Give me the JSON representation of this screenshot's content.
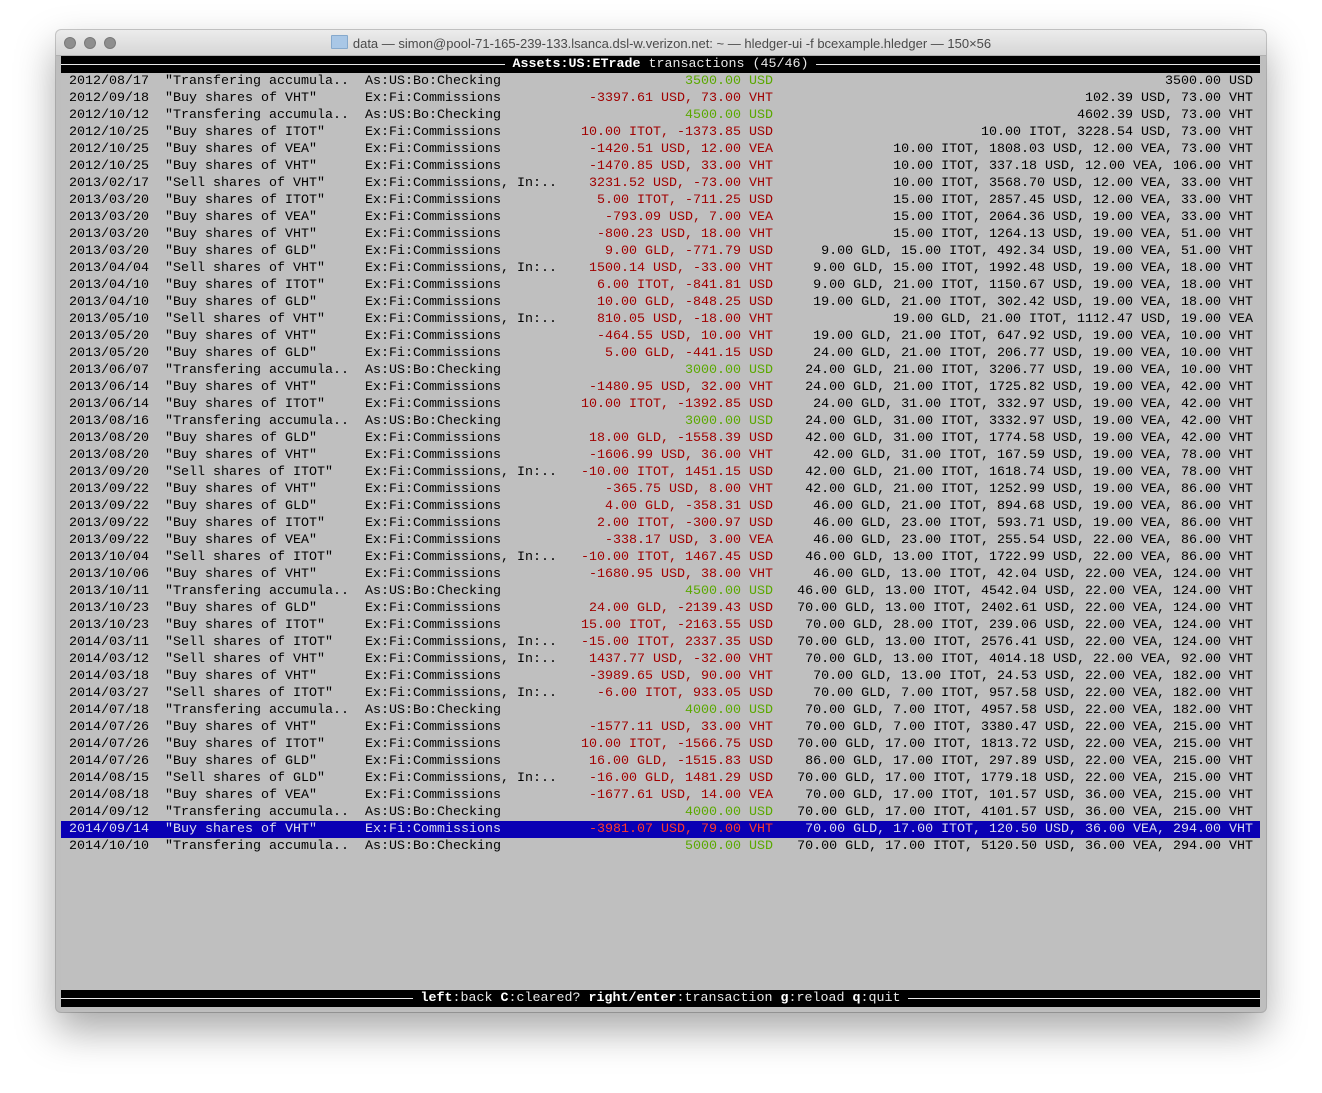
{
  "window": {
    "title": "data — simon@pool-71-165-239-133.lsanca.dsl-w.verizon.net: ~ — hledger-ui -f bcexample.hledger — 150×56",
    "folder_icon": "folder-icon"
  },
  "header": {
    "account": "Assets:US:ETrade",
    "label": "transactions (45/46)"
  },
  "colors": {
    "positive": "#5aa800",
    "negative": "#a00000",
    "selection": "#0a00b4"
  },
  "selected_index": 44,
  "rows": [
    {
      "date": "2012/08/17",
      "desc": "\"Transfering accumula..",
      "account": "As:US:Bo:Checking",
      "amount": "3500.00 USD",
      "balance": "3500.00 USD",
      "kind": "in"
    },
    {
      "date": "2012/09/18",
      "desc": "\"Buy shares of VHT\"",
      "account": "Ex:Fi:Commissions",
      "amount": "-3397.61 USD, 73.00 VHT",
      "balance": "102.39 USD, 73.00 VHT",
      "kind": "out"
    },
    {
      "date": "2012/10/12",
      "desc": "\"Transfering accumula..",
      "account": "As:US:Bo:Checking",
      "amount": "4500.00 USD",
      "balance": "4602.39 USD, 73.00 VHT",
      "kind": "in"
    },
    {
      "date": "2012/10/25",
      "desc": "\"Buy shares of ITOT\"",
      "account": "Ex:Fi:Commissions",
      "amount": "10.00 ITOT, -1373.85 USD",
      "balance": "10.00 ITOT, 3228.54 USD, 73.00 VHT",
      "kind": "out"
    },
    {
      "date": "2012/10/25",
      "desc": "\"Buy shares of VEA\"",
      "account": "Ex:Fi:Commissions",
      "amount": "-1420.51 USD, 12.00 VEA",
      "balance": "10.00 ITOT, 1808.03 USD, 12.00 VEA, 73.00 VHT",
      "kind": "out"
    },
    {
      "date": "2012/10/25",
      "desc": "\"Buy shares of VHT\"",
      "account": "Ex:Fi:Commissions",
      "amount": "-1470.85 USD, 33.00 VHT",
      "balance": "10.00 ITOT, 337.18 USD, 12.00 VEA, 106.00 VHT",
      "kind": "out"
    },
    {
      "date": "2013/02/17",
      "desc": "\"Sell shares of VHT\"",
      "account": "Ex:Fi:Commissions, In:..",
      "amount": "3231.52 USD, -73.00 VHT",
      "balance": "10.00 ITOT, 3568.70 USD, 12.00 VEA, 33.00 VHT",
      "kind": "out"
    },
    {
      "date": "2013/03/20",
      "desc": "\"Buy shares of ITOT\"",
      "account": "Ex:Fi:Commissions",
      "amount": "5.00 ITOT, -711.25 USD",
      "balance": "15.00 ITOT, 2857.45 USD, 12.00 VEA, 33.00 VHT",
      "kind": "out"
    },
    {
      "date": "2013/03/20",
      "desc": "\"Buy shares of VEA\"",
      "account": "Ex:Fi:Commissions",
      "amount": "-793.09 USD, 7.00 VEA",
      "balance": "15.00 ITOT, 2064.36 USD, 19.00 VEA, 33.00 VHT",
      "kind": "out"
    },
    {
      "date": "2013/03/20",
      "desc": "\"Buy shares of VHT\"",
      "account": "Ex:Fi:Commissions",
      "amount": "-800.23 USD, 18.00 VHT",
      "balance": "15.00 ITOT, 1264.13 USD, 19.00 VEA, 51.00 VHT",
      "kind": "out"
    },
    {
      "date": "2013/03/20",
      "desc": "\"Buy shares of GLD\"",
      "account": "Ex:Fi:Commissions",
      "amount": "9.00 GLD, -771.79 USD",
      "balance": "9.00 GLD, 15.00 ITOT, 492.34 USD, 19.00 VEA, 51.00 VHT",
      "kind": "out"
    },
    {
      "date": "2013/04/04",
      "desc": "\"Sell shares of VHT\"",
      "account": "Ex:Fi:Commissions, In:..",
      "amount": "1500.14 USD, -33.00 VHT",
      "balance": "9.00 GLD, 15.00 ITOT, 1992.48 USD, 19.00 VEA, 18.00 VHT",
      "kind": "out"
    },
    {
      "date": "2013/04/10",
      "desc": "\"Buy shares of ITOT\"",
      "account": "Ex:Fi:Commissions",
      "amount": "6.00 ITOT, -841.81 USD",
      "balance": "9.00 GLD, 21.00 ITOT, 1150.67 USD, 19.00 VEA, 18.00 VHT",
      "kind": "out"
    },
    {
      "date": "2013/04/10",
      "desc": "\"Buy shares of GLD\"",
      "account": "Ex:Fi:Commissions",
      "amount": "10.00 GLD, -848.25 USD",
      "balance": "19.00 GLD, 21.00 ITOT, 302.42 USD, 19.00 VEA, 18.00 VHT",
      "kind": "out"
    },
    {
      "date": "2013/05/10",
      "desc": "\"Sell shares of VHT\"",
      "account": "Ex:Fi:Commissions, In:..",
      "amount": "810.05 USD, -18.00 VHT",
      "balance": "19.00 GLD, 21.00 ITOT, 1112.47 USD, 19.00 VEA",
      "kind": "out"
    },
    {
      "date": "2013/05/20",
      "desc": "\"Buy shares of VHT\"",
      "account": "Ex:Fi:Commissions",
      "amount": "-464.55 USD, 10.00 VHT",
      "balance": "19.00 GLD, 21.00 ITOT, 647.92 USD, 19.00 VEA, 10.00 VHT",
      "kind": "out"
    },
    {
      "date": "2013/05/20",
      "desc": "\"Buy shares of GLD\"",
      "account": "Ex:Fi:Commissions",
      "amount": "5.00 GLD, -441.15 USD",
      "balance": "24.00 GLD, 21.00 ITOT, 206.77 USD, 19.00 VEA, 10.00 VHT",
      "kind": "out"
    },
    {
      "date": "2013/06/07",
      "desc": "\"Transfering accumula..",
      "account": "As:US:Bo:Checking",
      "amount": "3000.00 USD",
      "balance": "24.00 GLD, 21.00 ITOT, 3206.77 USD, 19.00 VEA, 10.00 VHT",
      "kind": "in"
    },
    {
      "date": "2013/06/14",
      "desc": "\"Buy shares of VHT\"",
      "account": "Ex:Fi:Commissions",
      "amount": "-1480.95 USD, 32.00 VHT",
      "balance": "24.00 GLD, 21.00 ITOT, 1725.82 USD, 19.00 VEA, 42.00 VHT",
      "kind": "out"
    },
    {
      "date": "2013/06/14",
      "desc": "\"Buy shares of ITOT\"",
      "account": "Ex:Fi:Commissions",
      "amount": "10.00 ITOT, -1392.85 USD",
      "balance": "24.00 GLD, 31.00 ITOT, 332.97 USD, 19.00 VEA, 42.00 VHT",
      "kind": "out"
    },
    {
      "date": "2013/08/16",
      "desc": "\"Transfering accumula..",
      "account": "As:US:Bo:Checking",
      "amount": "3000.00 USD",
      "balance": "24.00 GLD, 31.00 ITOT, 3332.97 USD, 19.00 VEA, 42.00 VHT",
      "kind": "in"
    },
    {
      "date": "2013/08/20",
      "desc": "\"Buy shares of GLD\"",
      "account": "Ex:Fi:Commissions",
      "amount": "18.00 GLD, -1558.39 USD",
      "balance": "42.00 GLD, 31.00 ITOT, 1774.58 USD, 19.00 VEA, 42.00 VHT",
      "kind": "out"
    },
    {
      "date": "2013/08/20",
      "desc": "\"Buy shares of VHT\"",
      "account": "Ex:Fi:Commissions",
      "amount": "-1606.99 USD, 36.00 VHT",
      "balance": "42.00 GLD, 31.00 ITOT, 167.59 USD, 19.00 VEA, 78.00 VHT",
      "kind": "out"
    },
    {
      "date": "2013/09/20",
      "desc": "\"Sell shares of ITOT\"",
      "account": "Ex:Fi:Commissions, In:..",
      "amount": "-10.00 ITOT, 1451.15 USD",
      "balance": "42.00 GLD, 21.00 ITOT, 1618.74 USD, 19.00 VEA, 78.00 VHT",
      "kind": "out"
    },
    {
      "date": "2013/09/22",
      "desc": "\"Buy shares of VHT\"",
      "account": "Ex:Fi:Commissions",
      "amount": "-365.75 USD, 8.00 VHT",
      "balance": "42.00 GLD, 21.00 ITOT, 1252.99 USD, 19.00 VEA, 86.00 VHT",
      "kind": "out"
    },
    {
      "date": "2013/09/22",
      "desc": "\"Buy shares of GLD\"",
      "account": "Ex:Fi:Commissions",
      "amount": "4.00 GLD, -358.31 USD",
      "balance": "46.00 GLD, 21.00 ITOT, 894.68 USD, 19.00 VEA, 86.00 VHT",
      "kind": "out"
    },
    {
      "date": "2013/09/22",
      "desc": "\"Buy shares of ITOT\"",
      "account": "Ex:Fi:Commissions",
      "amount": "2.00 ITOT, -300.97 USD",
      "balance": "46.00 GLD, 23.00 ITOT, 593.71 USD, 19.00 VEA, 86.00 VHT",
      "kind": "out"
    },
    {
      "date": "2013/09/22",
      "desc": "\"Buy shares of VEA\"",
      "account": "Ex:Fi:Commissions",
      "amount": "-338.17 USD, 3.00 VEA",
      "balance": "46.00 GLD, 23.00 ITOT, 255.54 USD, 22.00 VEA, 86.00 VHT",
      "kind": "out"
    },
    {
      "date": "2013/10/04",
      "desc": "\"Sell shares of ITOT\"",
      "account": "Ex:Fi:Commissions, In:..",
      "amount": "-10.00 ITOT, 1467.45 USD",
      "balance": "46.00 GLD, 13.00 ITOT, 1722.99 USD, 22.00 VEA, 86.00 VHT",
      "kind": "out"
    },
    {
      "date": "2013/10/06",
      "desc": "\"Buy shares of VHT\"",
      "account": "Ex:Fi:Commissions",
      "amount": "-1680.95 USD, 38.00 VHT",
      "balance": "46.00 GLD, 13.00 ITOT, 42.04 USD, 22.00 VEA, 124.00 VHT",
      "kind": "out"
    },
    {
      "date": "2013/10/11",
      "desc": "\"Transfering accumula..",
      "account": "As:US:Bo:Checking",
      "amount": "4500.00 USD",
      "balance": "46.00 GLD, 13.00 ITOT, 4542.04 USD, 22.00 VEA, 124.00 VHT",
      "kind": "in"
    },
    {
      "date": "2013/10/23",
      "desc": "\"Buy shares of GLD\"",
      "account": "Ex:Fi:Commissions",
      "amount": "24.00 GLD, -2139.43 USD",
      "balance": "70.00 GLD, 13.00 ITOT, 2402.61 USD, 22.00 VEA, 124.00 VHT",
      "kind": "out"
    },
    {
      "date": "2013/10/23",
      "desc": "\"Buy shares of ITOT\"",
      "account": "Ex:Fi:Commissions",
      "amount": "15.00 ITOT, -2163.55 USD",
      "balance": "70.00 GLD, 28.00 ITOT, 239.06 USD, 22.00 VEA, 124.00 VHT",
      "kind": "out"
    },
    {
      "date": "2014/03/11",
      "desc": "\"Sell shares of ITOT\"",
      "account": "Ex:Fi:Commissions, In:..",
      "amount": "-15.00 ITOT, 2337.35 USD",
      "balance": "70.00 GLD, 13.00 ITOT, 2576.41 USD, 22.00 VEA, 124.00 VHT",
      "kind": "out"
    },
    {
      "date": "2014/03/12",
      "desc": "\"Sell shares of VHT\"",
      "account": "Ex:Fi:Commissions, In:..",
      "amount": "1437.77 USD, -32.00 VHT",
      "balance": "70.00 GLD, 13.00 ITOT, 4014.18 USD, 22.00 VEA, 92.00 VHT",
      "kind": "out"
    },
    {
      "date": "2014/03/18",
      "desc": "\"Buy shares of VHT\"",
      "account": "Ex:Fi:Commissions",
      "amount": "-3989.65 USD, 90.00 VHT",
      "balance": "70.00 GLD, 13.00 ITOT, 24.53 USD, 22.00 VEA, 182.00 VHT",
      "kind": "out"
    },
    {
      "date": "2014/03/27",
      "desc": "\"Sell shares of ITOT\"",
      "account": "Ex:Fi:Commissions, In:..",
      "amount": "-6.00 ITOT, 933.05 USD",
      "balance": "70.00 GLD, 7.00 ITOT, 957.58 USD, 22.00 VEA, 182.00 VHT",
      "kind": "out"
    },
    {
      "date": "2014/07/18",
      "desc": "\"Transfering accumula..",
      "account": "As:US:Bo:Checking",
      "amount": "4000.00 USD",
      "balance": "70.00 GLD, 7.00 ITOT, 4957.58 USD, 22.00 VEA, 182.00 VHT",
      "kind": "in"
    },
    {
      "date": "2014/07/26",
      "desc": "\"Buy shares of VHT\"",
      "account": "Ex:Fi:Commissions",
      "amount": "-1577.11 USD, 33.00 VHT",
      "balance": "70.00 GLD, 7.00 ITOT, 3380.47 USD, 22.00 VEA, 215.00 VHT",
      "kind": "out"
    },
    {
      "date": "2014/07/26",
      "desc": "\"Buy shares of ITOT\"",
      "account": "Ex:Fi:Commissions",
      "amount": "10.00 ITOT, -1566.75 USD",
      "balance": "70.00 GLD, 17.00 ITOT, 1813.72 USD, 22.00 VEA, 215.00 VHT",
      "kind": "out"
    },
    {
      "date": "2014/07/26",
      "desc": "\"Buy shares of GLD\"",
      "account": "Ex:Fi:Commissions",
      "amount": "16.00 GLD, -1515.83 USD",
      "balance": "86.00 GLD, 17.00 ITOT, 297.89 USD, 22.00 VEA, 215.00 VHT",
      "kind": "out"
    },
    {
      "date": "2014/08/15",
      "desc": "\"Sell shares of GLD\"",
      "account": "Ex:Fi:Commissions, In:..",
      "amount": "-16.00 GLD, 1481.29 USD",
      "balance": "70.00 GLD, 17.00 ITOT, 1779.18 USD, 22.00 VEA, 215.00 VHT",
      "kind": "out"
    },
    {
      "date": "2014/08/18",
      "desc": "\"Buy shares of VEA\"",
      "account": "Ex:Fi:Commissions",
      "amount": "-1677.61 USD, 14.00 VEA",
      "balance": "70.00 GLD, 17.00 ITOT, 101.57 USD, 36.00 VEA, 215.00 VHT",
      "kind": "out"
    },
    {
      "date": "2014/09/12",
      "desc": "\"Transfering accumula..",
      "account": "As:US:Bo:Checking",
      "amount": "4000.00 USD",
      "balance": "70.00 GLD, 17.00 ITOT, 4101.57 USD, 36.00 VEA, 215.00 VHT",
      "kind": "in"
    },
    {
      "date": "2014/09/14",
      "desc": "\"Buy shares of VHT\"",
      "account": "Ex:Fi:Commissions",
      "amount": "-3981.07 USD, 79.00 VHT",
      "balance": "70.00 GLD, 17.00 ITOT, 120.50 USD, 36.00 VEA, 294.00 VHT",
      "kind": "out"
    },
    {
      "date": "2014/10/10",
      "desc": "\"Transfering accumula..",
      "account": "As:US:Bo:Checking",
      "amount": "5000.00 USD",
      "balance": "70.00 GLD, 17.00 ITOT, 5120.50 USD, 36.00 VEA, 294.00 VHT",
      "kind": "in"
    }
  ],
  "footer": {
    "keys": [
      {
        "key": "left",
        "action": "back"
      },
      {
        "key": "C",
        "action": "cleared?"
      },
      {
        "key": "right/enter",
        "action": "transaction"
      },
      {
        "key": "g",
        "action": "reload"
      },
      {
        "key": "q",
        "action": "quit"
      }
    ]
  }
}
